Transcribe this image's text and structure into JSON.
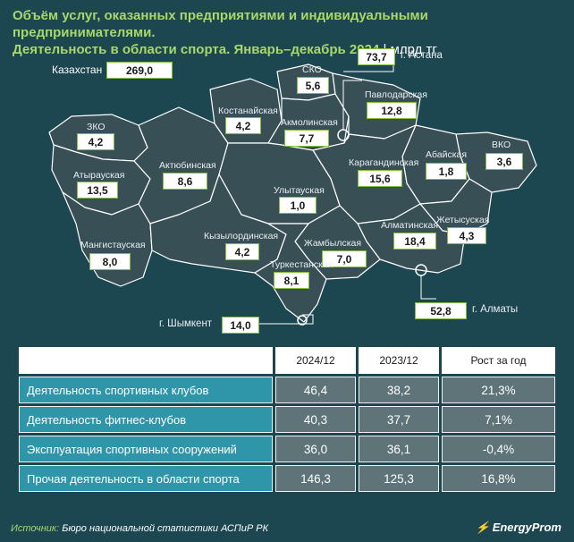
{
  "title": {
    "line1": "Объём услуг, оказанных предприятиями и индивидуальными предпринимателями.",
    "line2": "Деятельность в области спорта. Январь–декабрь 2024",
    "unit": "млрд тг"
  },
  "map": {
    "total": {
      "label": "Казахстан",
      "value": "269,0"
    },
    "regions": [
      {
        "id": "sko",
        "label": "СКО",
        "value": "5,6"
      },
      {
        "id": "astana",
        "label": "г. Астана",
        "value": "73,7"
      },
      {
        "id": "pavlodar",
        "label": "Павлодарская",
        "value": "12,8"
      },
      {
        "id": "kostanay",
        "label": "Костанайская",
        "value": "4,2"
      },
      {
        "id": "akmola",
        "label": "Акмолинская",
        "value": "7,7"
      },
      {
        "id": "zko",
        "label": "ЗКО",
        "value": "4,2"
      },
      {
        "id": "aktobe",
        "label": "Актюбинская",
        "value": "8,6"
      },
      {
        "id": "atyrau",
        "label": "Атырауская",
        "value": "13,5"
      },
      {
        "id": "vko",
        "label": "ВКО",
        "value": "3,6"
      },
      {
        "id": "abay",
        "label": "Абайская",
        "value": "1,8"
      },
      {
        "id": "karaganda",
        "label": "Карагандинская",
        "value": "15,6"
      },
      {
        "id": "ulytau",
        "label": "Улытауская",
        "value": "1,0"
      },
      {
        "id": "mangystau",
        "label": "Мангистауская",
        "value": "8,0"
      },
      {
        "id": "kyzylorda",
        "label": "Кызылординская",
        "value": "4,2"
      },
      {
        "id": "zhetysu",
        "label": "Жетысуская",
        "value": "4,3"
      },
      {
        "id": "almaty_reg",
        "label": "Алматинская",
        "value": "18,4"
      },
      {
        "id": "zhambyl",
        "label": "Жамбылская",
        "value": "7,0"
      },
      {
        "id": "turkestan",
        "label": "Туркестанская",
        "value": "8,1"
      },
      {
        "id": "almaty_city",
        "label": "г. Алматы",
        "value": "52,8"
      },
      {
        "id": "shymkent",
        "label": "г. Шымкент",
        "value": "14,0"
      }
    ],
    "colors": {
      "region": "#384f56",
      "border": "#ffffff",
      "box_border": "#7fbf3f"
    }
  },
  "table": {
    "columns": [
      "2024/12",
      "2023/12",
      "Рост за год"
    ],
    "rows": [
      {
        "label": "Деятельность спортивных клубов",
        "values": [
          "46,4",
          "38,2",
          "21,3%"
        ]
      },
      {
        "label": "Деятельность фитнес-клубов",
        "values": [
          "40,3",
          "37,7",
          "7,1%"
        ]
      },
      {
        "label": "Эксплуатация спортивных сооружений",
        "values": [
          "36,0",
          "36,1",
          "-0,4%"
        ]
      },
      {
        "label": "Прочая деятельность в области спорта",
        "values": [
          "146,3",
          "125,3",
          "16,8%"
        ]
      }
    ]
  },
  "footer": {
    "source_label": "Источник:",
    "source_text": "Бюро национальной статистики АСПиР РК",
    "brand": "EnergyProm"
  }
}
